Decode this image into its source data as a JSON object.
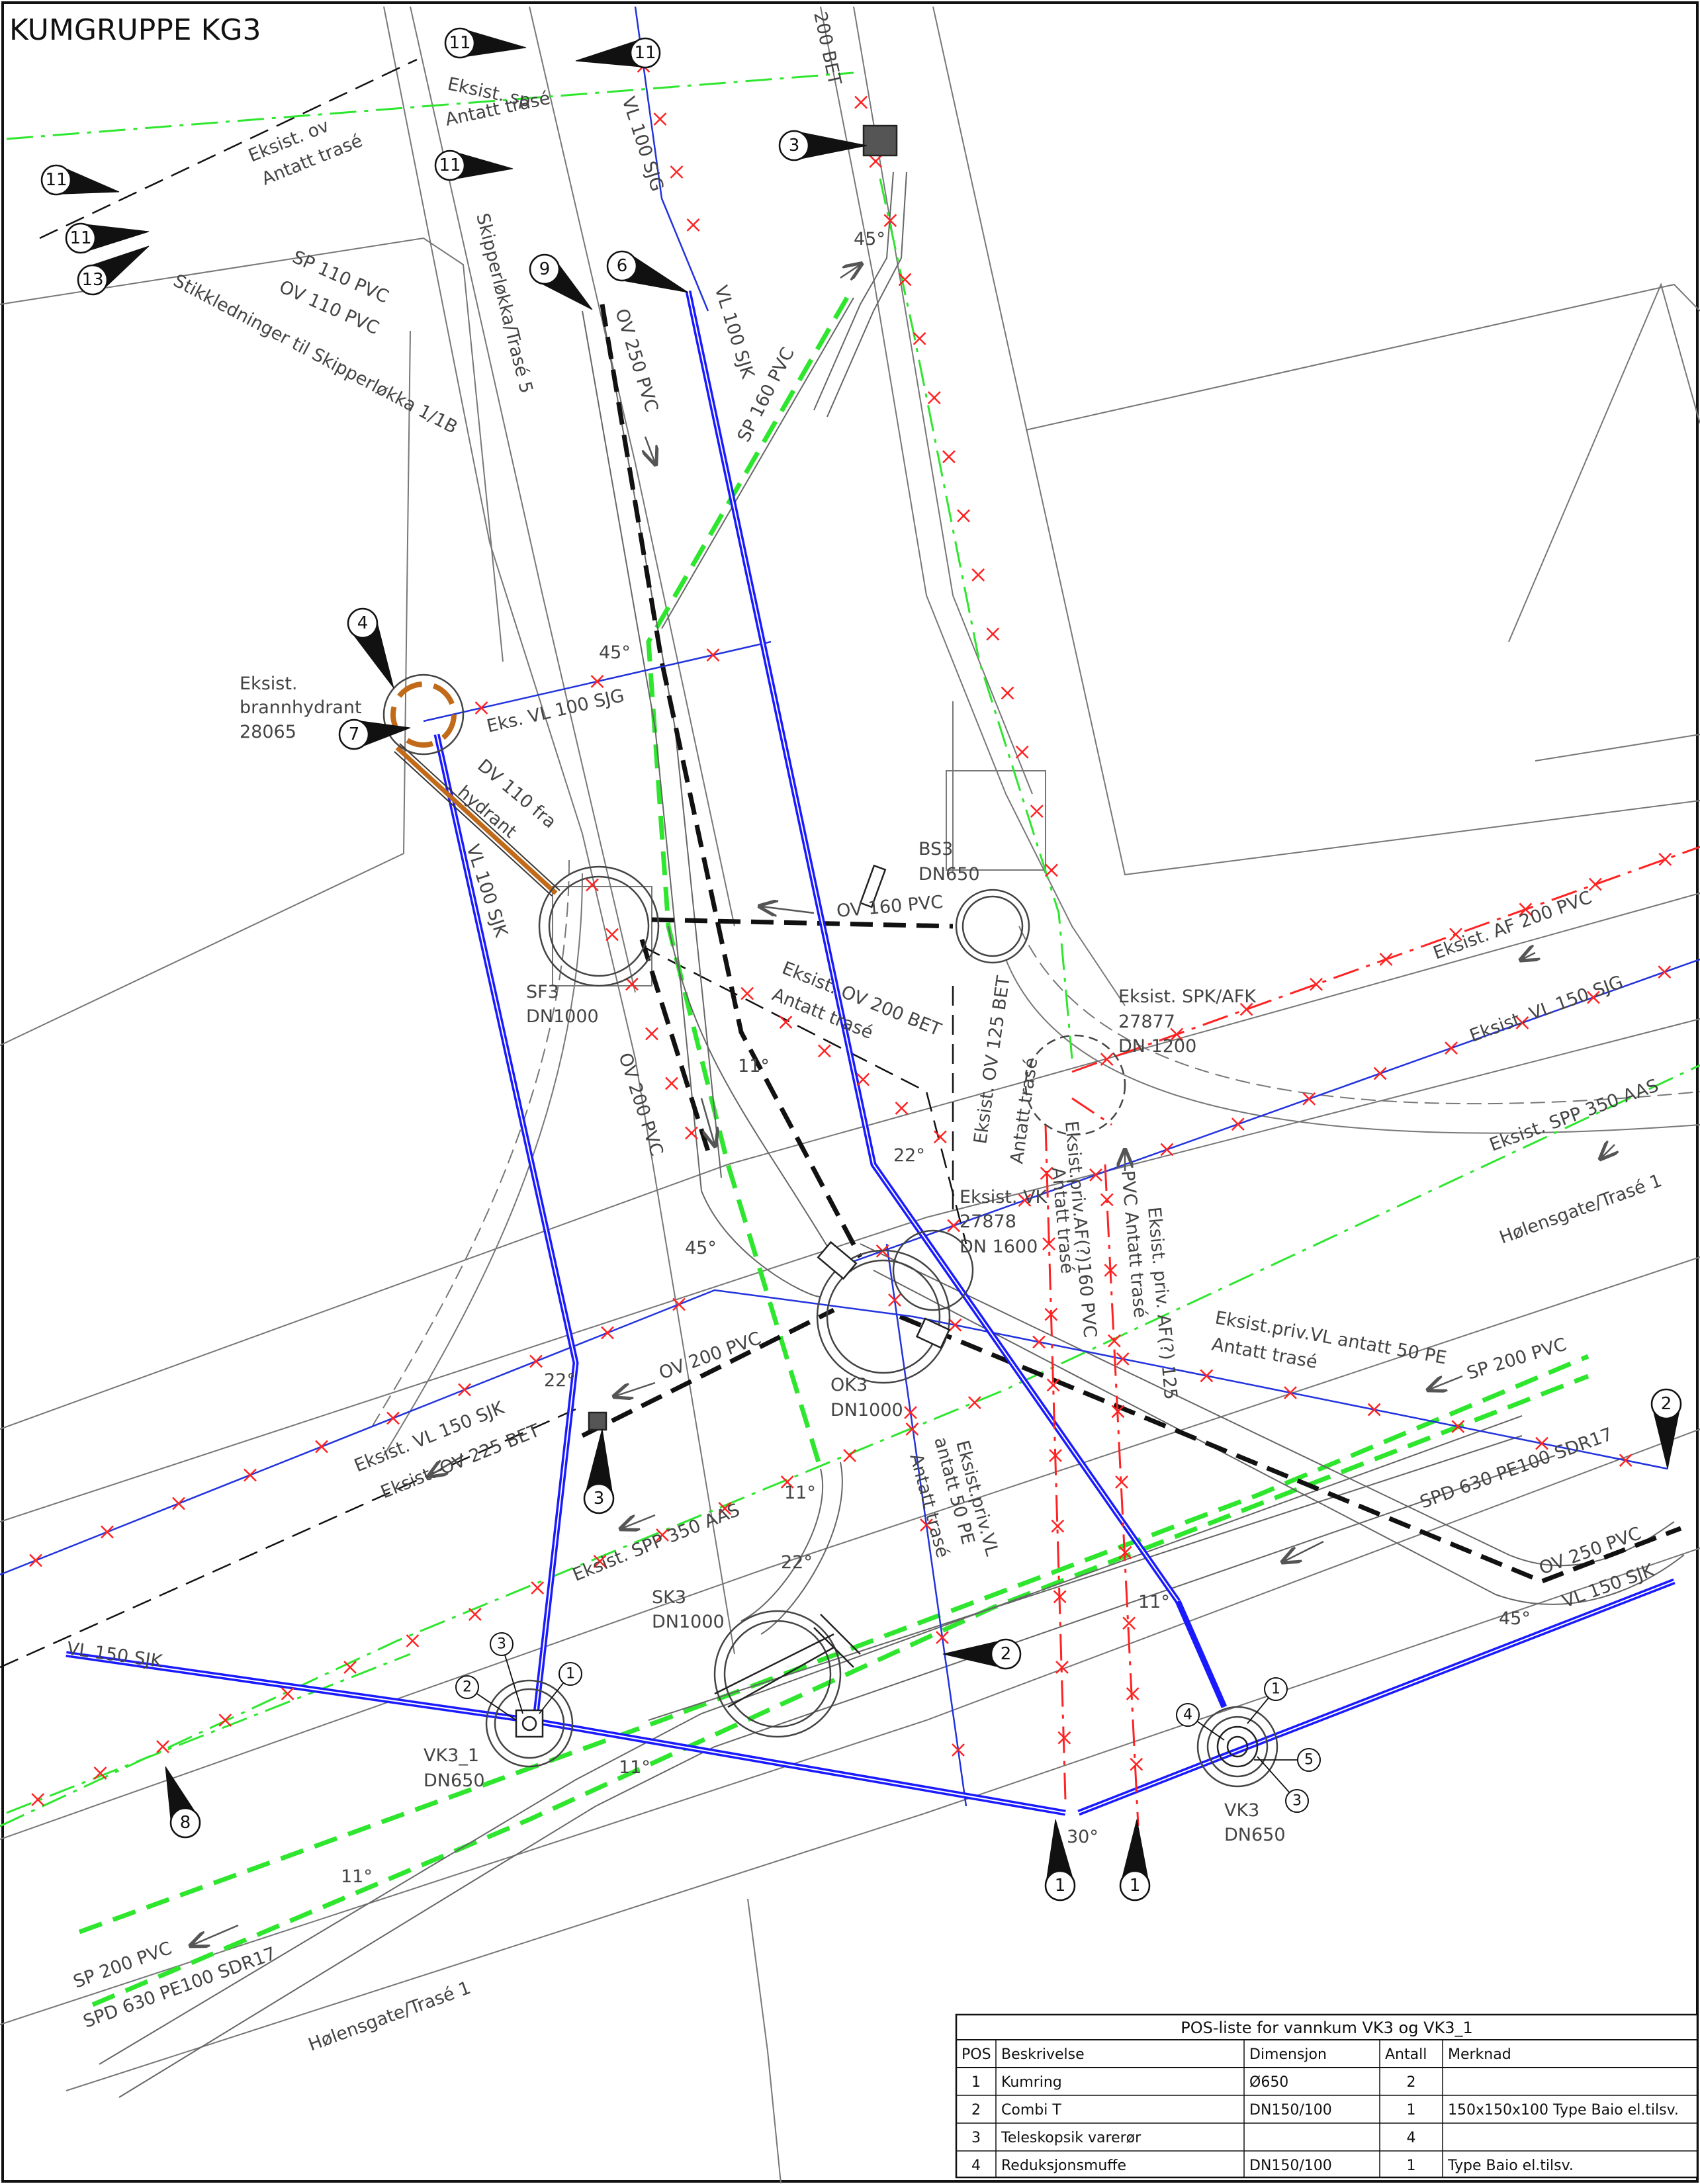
{
  "title": "KUMGRUPPE KG3",
  "colors": {
    "water": "#1a1aff",
    "water_thin": "#2233dd",
    "sewer_green": "#2ee62e",
    "red_line": "#ff2222",
    "brown": "#c06a1a",
    "gray": "#666666",
    "black": "#111111"
  },
  "labels": [
    {
      "id": "eksist-sp",
      "text": "Eksist. sp"
    },
    {
      "id": "antatt-1",
      "text": "Antatt trasé"
    },
    {
      "id": "eksist-ov",
      "text": "Eksist. ov"
    },
    {
      "id": "antatt-2",
      "text": "Antatt trasé"
    },
    {
      "id": "sp110",
      "text": "SP 110 PVC"
    },
    {
      "id": "ov110",
      "text": "OV 110 PVC"
    },
    {
      "id": "stikk",
      "text": "Stikkledninger til Skipperløkka 1/1B"
    },
    {
      "id": "skipper",
      "text": "Skipperløkka/Trasé 5"
    },
    {
      "id": "ov250",
      "text": "OV 250 PVC"
    },
    {
      "id": "vl100a",
      "text": "VL 100 SJG"
    },
    {
      "id": "vl100b",
      "text": "VL 100 SJK"
    },
    {
      "id": "sp160",
      "text": "SP 160 PVC"
    },
    {
      "id": "bet200",
      "text": "200 BET"
    },
    {
      "id": "deg45a",
      "text": "45°"
    },
    {
      "id": "deg45b",
      "text": "45°"
    },
    {
      "id": "hyd1",
      "text": "Eksist."
    },
    {
      "id": "hyd2",
      "text": "brannhydrant"
    },
    {
      "id": "hyd3",
      "text": "28065"
    },
    {
      "id": "eksvl100",
      "text": "Eks. VL 100 SJG"
    },
    {
      "id": "dv110",
      "text": "DV 110 fra"
    },
    {
      "id": "hydrant",
      "text": "hydrant"
    },
    {
      "id": "vl100c",
      "text": "VL 100 SJK"
    },
    {
      "id": "sf3a",
      "text": "SF3"
    },
    {
      "id": "sf3b",
      "text": "DN1000"
    },
    {
      "id": "bs3a",
      "text": "BS3"
    },
    {
      "id": "bs3b",
      "text": "DN650"
    },
    {
      "id": "ov160",
      "text": "OV 160 PVC"
    },
    {
      "id": "eksov200",
      "text": "Eksist. OV 200 BET"
    },
    {
      "id": "antatt-3",
      "text": "Antatt trasé"
    },
    {
      "id": "eksov125",
      "text": "Eksist. OV 125 BET"
    },
    {
      "id": "antatt-4",
      "text": "Antatt trasé"
    },
    {
      "id": "spk1",
      "text": "Eksist. SPK/AFK"
    },
    {
      "id": "spk2",
      "text": "27877"
    },
    {
      "id": "spk3",
      "text": "DN 1200"
    },
    {
      "id": "af200",
      "text": "Eksist. AF 200 PVC"
    },
    {
      "id": "vl150sjg",
      "text": "Eksist. VL 150 SJG"
    },
    {
      "id": "spp350a",
      "text": "Eksist. SPP 350 AAS"
    },
    {
      "id": "holens1",
      "text": "Hølensgate/Trasé 1"
    },
    {
      "id": "ov200pvc",
      "text": "OV 200 PVC"
    },
    {
      "id": "deg11a",
      "text": "11°"
    },
    {
      "id": "deg22a",
      "text": "22°"
    },
    {
      "id": "vk1",
      "text": "Eksist. VK"
    },
    {
      "id": "vk2",
      "text": "27878"
    },
    {
      "id": "vk3",
      "text": "DN 1600"
    },
    {
      "id": "eprivaf",
      "text": "Eksist.priv.AF(?)160 PVC"
    },
    {
      "id": "antatt-5",
      "text": "Antatt trasé"
    },
    {
      "id": "eprivaf125",
      "text": "Eksist. priv. AF(?) 125"
    },
    {
      "id": "pvcantatt",
      "text": "PVC Antatt trasé"
    },
    {
      "id": "deg45c",
      "text": "45°"
    },
    {
      "id": "ok3a",
      "text": "OK3"
    },
    {
      "id": "ok3b",
      "text": "DN1000"
    },
    {
      "id": "eprivvl",
      "text": "Eksist.priv.VL antatt 50 PE"
    },
    {
      "id": "antatt-6",
      "text": "Antatt trasé"
    },
    {
      "id": "sp200a",
      "text": "SP 200 PVC"
    },
    {
      "id": "ov200b",
      "text": "OV 200 PVC"
    },
    {
      "id": "deg22b",
      "text": "22°"
    },
    {
      "id": "vl150sjk-e",
      "text": "Eksist. VL 150 SJK"
    },
    {
      "id": "ov225",
      "text": "Eksist. OV 225 BET"
    },
    {
      "id": "spp350b",
      "text": "Eksist. SPP 350 AAS"
    },
    {
      "id": "deg11b",
      "text": "11°"
    },
    {
      "id": "deg22c",
      "text": "22°"
    },
    {
      "id": "eprivvl2",
      "text": "Eksist.priv.VL"
    },
    {
      "id": "eprivvl3",
      "text": "antatt 50 PE"
    },
    {
      "id": "antatt-7",
      "text": "Antatt trasé"
    },
    {
      "id": "spd630a",
      "text": "SPD 630 PE100 SDR17"
    },
    {
      "id": "ov250b",
      "text": "OV 250 PVC"
    },
    {
      "id": "vl150sjk-a",
      "text": "VL 150 SJK"
    },
    {
      "id": "deg45d",
      "text": "45°"
    },
    {
      "id": "deg11c",
      "text": "11°"
    },
    {
      "id": "sk3a",
      "text": "SK3"
    },
    {
      "id": "sk3b",
      "text": "DN1000"
    },
    {
      "id": "vl150sjk-b",
      "text": "VL 150 SJK"
    },
    {
      "id": "vk31a",
      "text": "VK3_1"
    },
    {
      "id": "vk31b",
      "text": "DN650"
    },
    {
      "id": "deg11d",
      "text": "11°"
    },
    {
      "id": "deg30",
      "text": "30°"
    },
    {
      "id": "vk3a",
      "text": "VK3"
    },
    {
      "id": "vk3b",
      "text": "DN650"
    },
    {
      "id": "deg11e",
      "text": "11°"
    },
    {
      "id": "sp200b",
      "text": "SP 200 PVC"
    },
    {
      "id": "spd630b",
      "text": "SPD 630 PE100 SDR17"
    },
    {
      "id": "holens2",
      "text": "Hølensgate/Trasé 1"
    }
  ],
  "callouts": [
    {
      "n": "11"
    },
    {
      "n": "11"
    },
    {
      "n": "11"
    },
    {
      "n": "11"
    },
    {
      "n": "11"
    },
    {
      "n": "13"
    },
    {
      "n": "3"
    },
    {
      "n": "9"
    },
    {
      "n": "6"
    },
    {
      "n": "4"
    },
    {
      "n": "7"
    },
    {
      "n": "3"
    },
    {
      "n": "2"
    },
    {
      "n": "2"
    },
    {
      "n": "8"
    },
    {
      "n": "1"
    },
    {
      "n": "1"
    }
  ],
  "small_markers": [
    {
      "n": "3"
    },
    {
      "n": "2"
    },
    {
      "n": "1"
    },
    {
      "n": "1"
    },
    {
      "n": "4"
    },
    {
      "n": "5"
    },
    {
      "n": "3"
    }
  ],
  "pos_table": {
    "title": "POS-liste for vannkum VK3 og VK3_1",
    "headers": [
      "POS",
      "Beskrivelse",
      "Dimensjon",
      "Antall",
      "Merknad"
    ],
    "rows": [
      [
        "1",
        "Kumring",
        "Ø650",
        "2",
        ""
      ],
      [
        "2",
        "Combi T",
        "DN150/100",
        "1",
        "150x150x100 Type Baio el.tilsv."
      ],
      [
        "3",
        "Teleskopsik varerør",
        "",
        "4",
        ""
      ],
      [
        "4",
        "Reduksjonsmuffe",
        "DN150/100",
        "1",
        "Type Baio el.tilsv."
      ]
    ]
  }
}
